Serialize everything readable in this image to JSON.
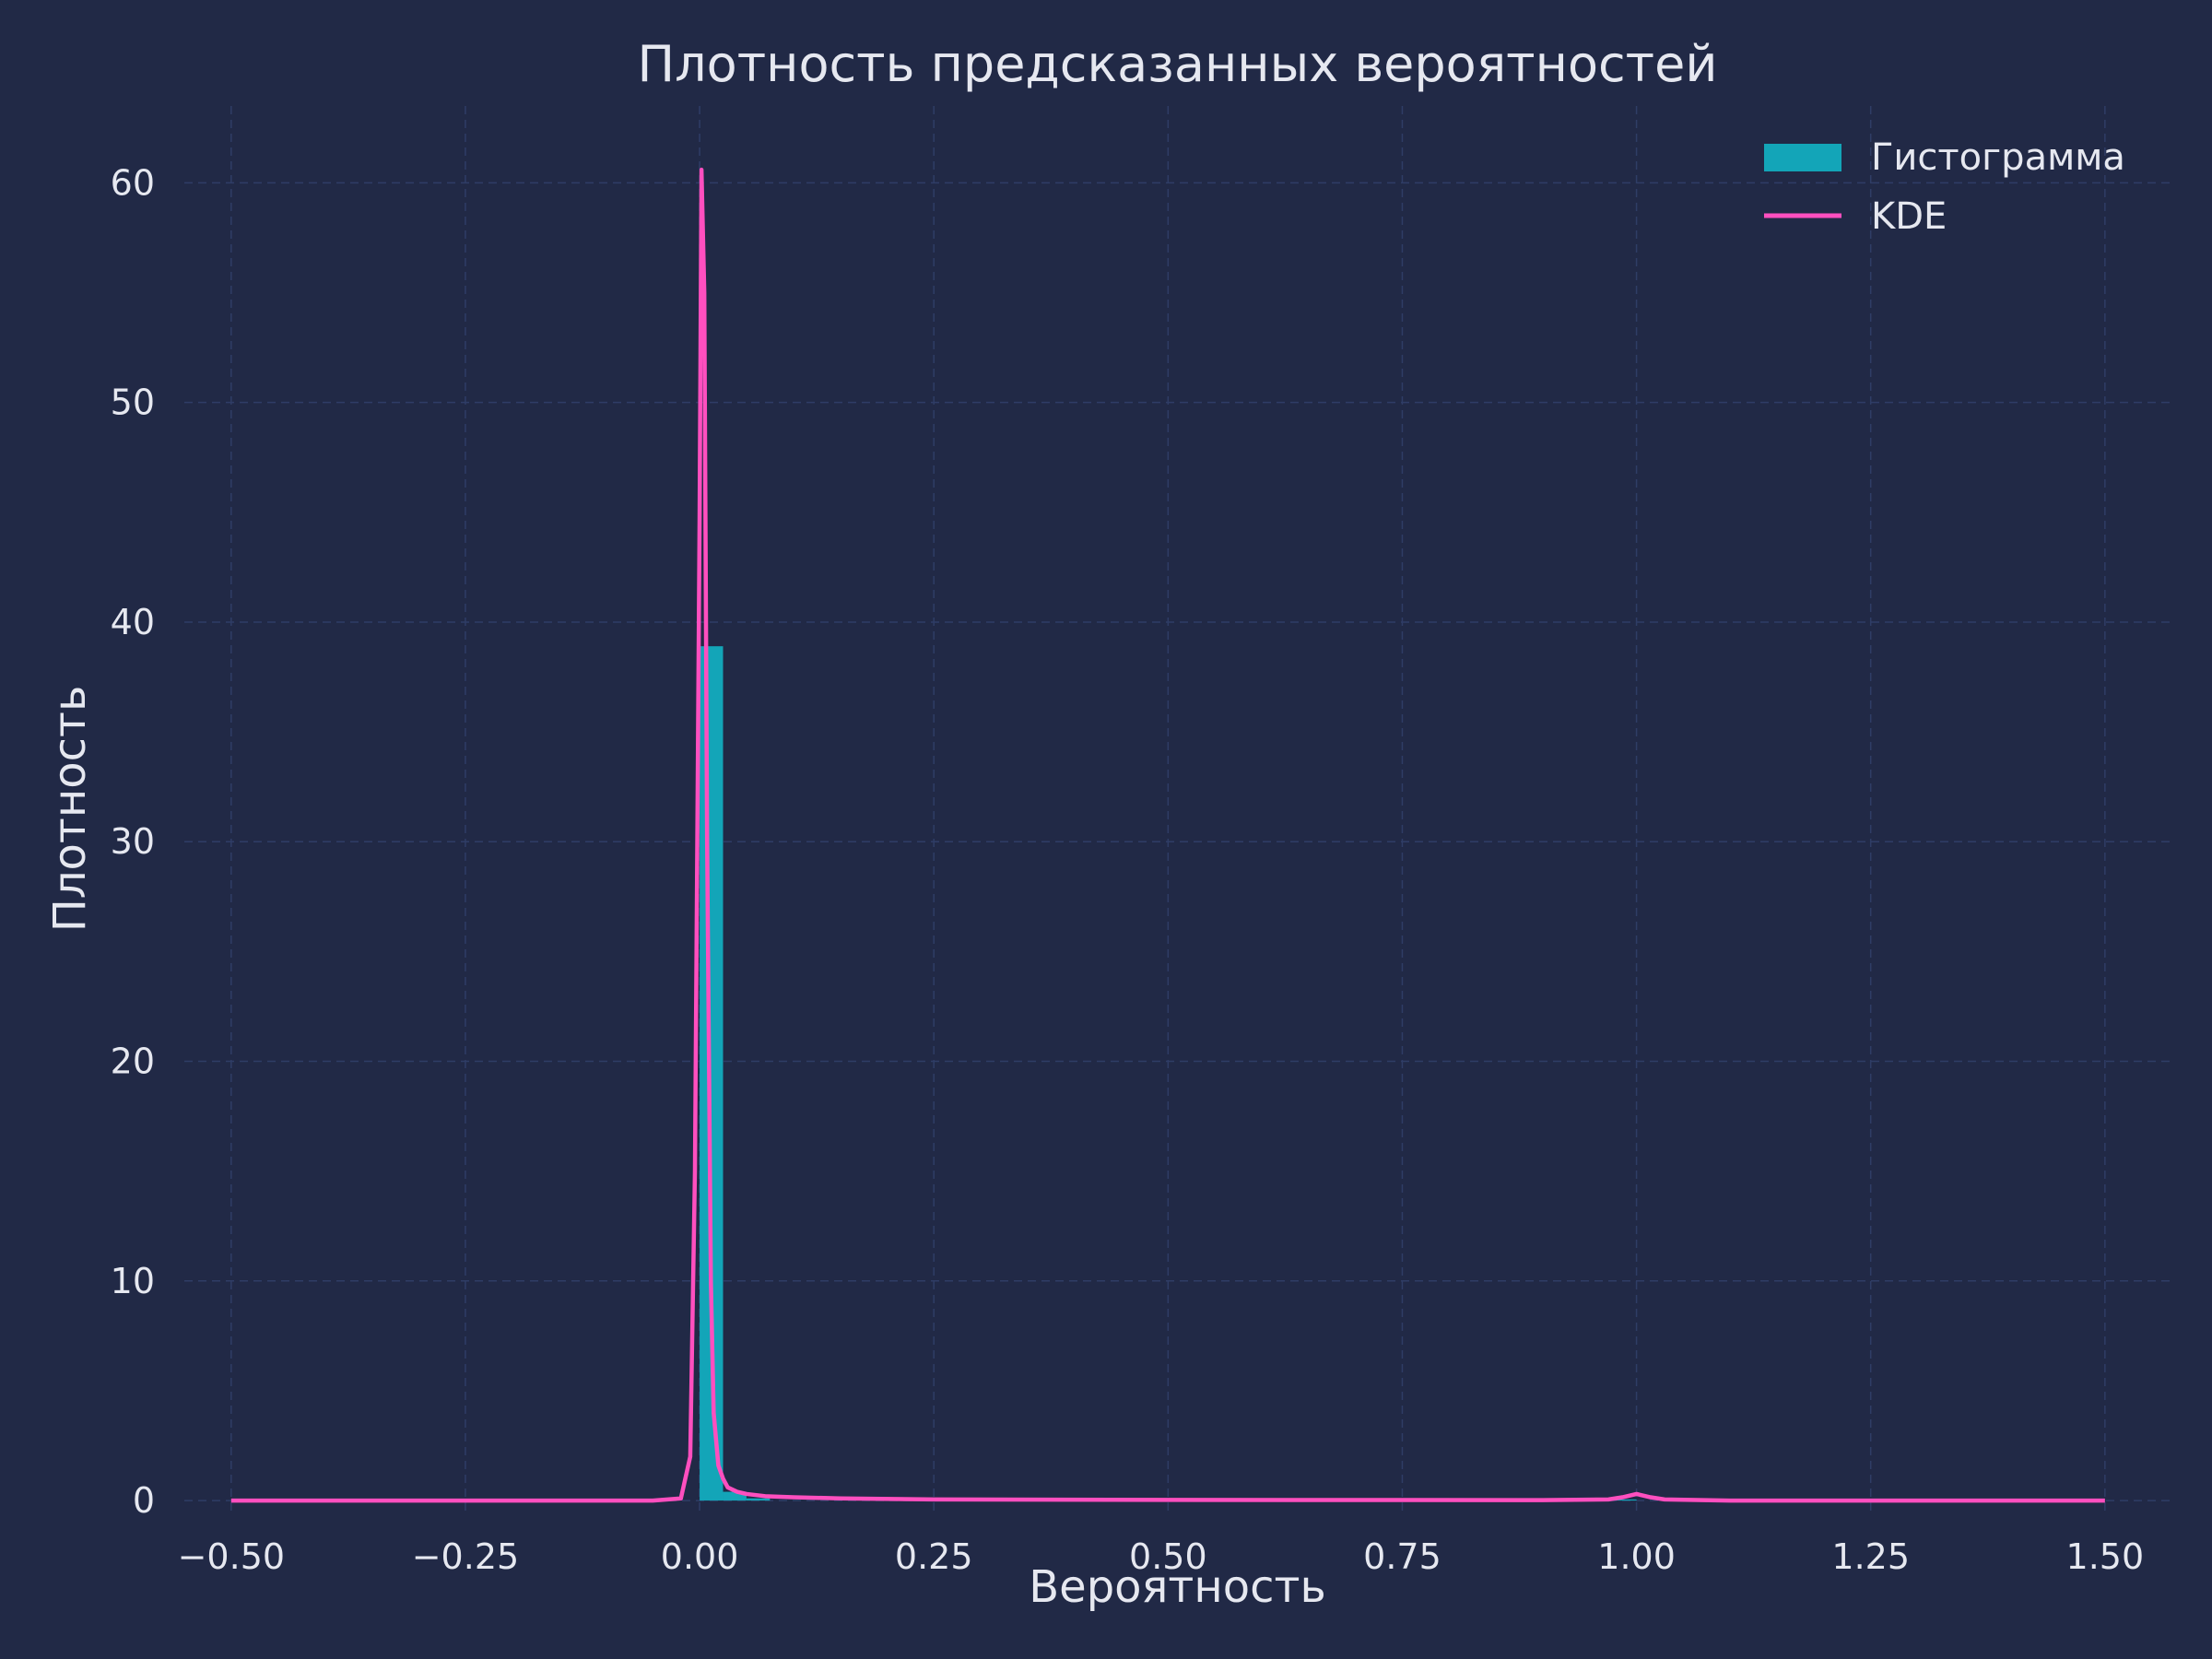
{
  "colors": {
    "background": "#212946",
    "grid": "#2f3d66",
    "histogram": "#13a5b8",
    "kde": "#ff4fbf",
    "text": "#e6e8f0"
  },
  "chart_data": {
    "type": "bar",
    "title": "Плотность предсказанных вероятностей",
    "xlabel": "Вероятность",
    "ylabel": "Плотность",
    "xlim": [
      -0.55,
      1.57
    ],
    "ylim": [
      -0.5,
      63.5
    ],
    "x_ticks": [
      -0.5,
      -0.25,
      0.0,
      0.25,
      0.5,
      0.75,
      1.0,
      1.25,
      1.5
    ],
    "x_tick_labels": [
      "−0.50",
      "−0.25",
      "0.00",
      "0.25",
      "0.50",
      "0.75",
      "1.00",
      "1.25",
      "1.50"
    ],
    "y_ticks": [
      0,
      10,
      20,
      30,
      40,
      50,
      60
    ],
    "y_tick_labels": [
      "0",
      "10",
      "20",
      "30",
      "40",
      "50",
      "60"
    ],
    "grid": true,
    "legend_position": "top-right",
    "series": [
      {
        "name": "Гистограмма",
        "kind": "histogram",
        "bins": [
          {
            "x0": 0.0,
            "x1": 0.025,
            "density": 38.9
          },
          {
            "x0": 0.025,
            "x1": 0.05,
            "density": 0.4
          },
          {
            "x0": 0.05,
            "x1": 0.075,
            "density": 0.1
          },
          {
            "x0": 0.975,
            "x1": 1.0,
            "density": 0.05
          }
        ]
      },
      {
        "name": "KDE",
        "kind": "line",
        "x": [
          -0.5,
          -0.05,
          -0.02,
          -0.01,
          -0.005,
          0.0,
          0.002,
          0.005,
          0.008,
          0.012,
          0.015,
          0.02,
          0.025,
          0.03,
          0.04,
          0.05,
          0.07,
          0.1,
          0.15,
          0.25,
          0.5,
          0.9,
          0.97,
          0.985,
          1.0,
          1.015,
          1.03,
          1.1,
          1.5
        ],
        "y": [
          0.0,
          0.0,
          0.1,
          2.0,
          15.0,
          45.0,
          60.6,
          55.0,
          30.0,
          10.0,
          4.0,
          1.6,
          1.0,
          0.6,
          0.4,
          0.3,
          0.2,
          0.15,
          0.1,
          0.05,
          0.03,
          0.02,
          0.05,
          0.15,
          0.3,
          0.15,
          0.05,
          0.0,
          0.0
        ]
      }
    ]
  }
}
